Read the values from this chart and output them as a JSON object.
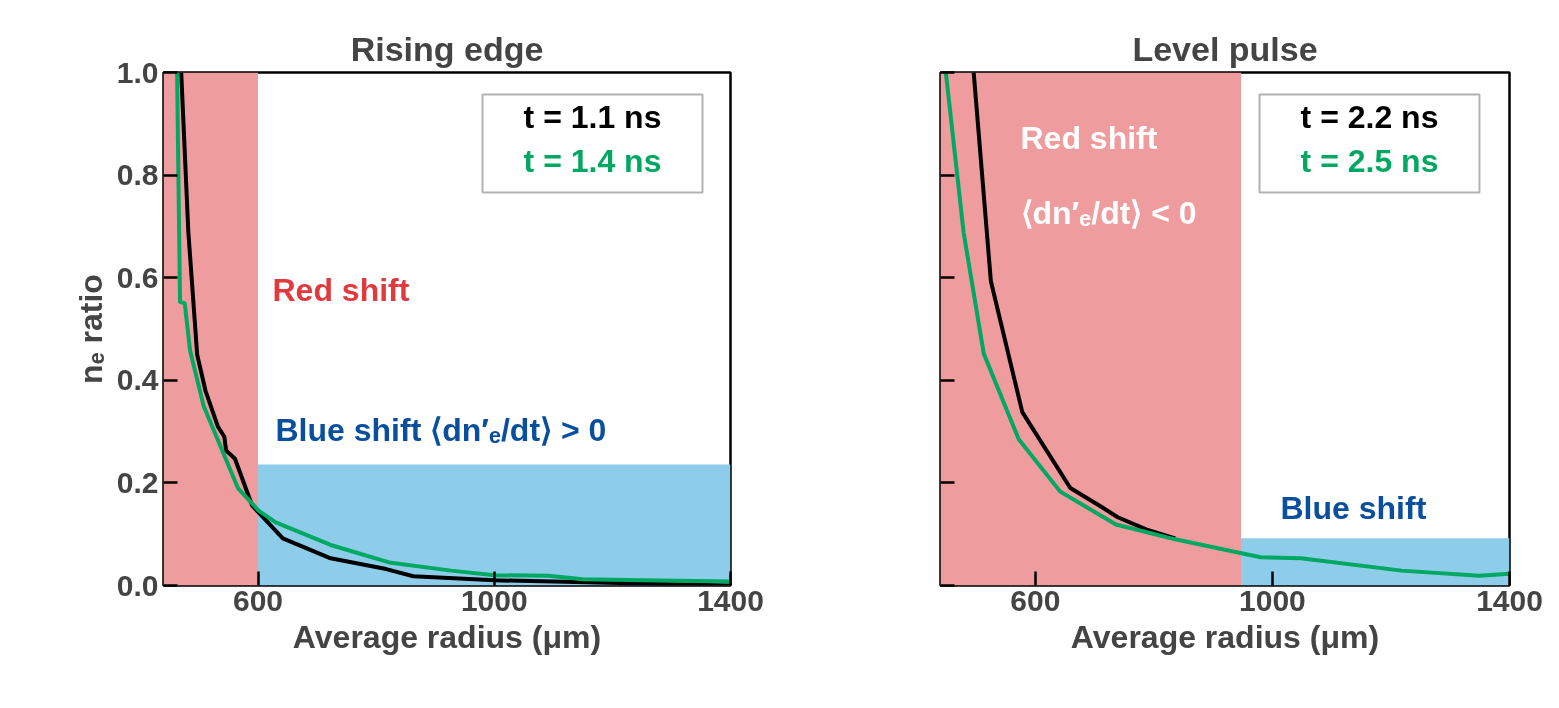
{
  "chart_data": [
    {
      "type": "line",
      "title": "Rising edge",
      "xlabel": "Average radius (μm)",
      "ylabel": "nₑ ratio",
      "xlim": [
        440,
        1400
      ],
      "ylim": [
        0,
        1.0
      ],
      "xticks": [
        600,
        1000,
        1400
      ],
      "yticks": [
        {
          "value": 0,
          "label": "0.0"
        },
        {
          "value": 0.2,
          "label": "0.2"
        },
        {
          "value": 0.4,
          "label": "0.4"
        },
        {
          "value": 0.6,
          "label": "0.6"
        },
        {
          "value": 0.8,
          "label": "0.8"
        },
        {
          "value": 1.0,
          "label": "1.0"
        }
      ],
      "grid": false,
      "legend": "top right",
      "bands": [
        {
          "axis": "x",
          "from": 440,
          "to": 600,
          "color": "#ee9c9e"
        }
      ],
      "annotations": [
        "Red shift",
        "Blue shift ⟨dn′ₑ/dt⟩ > 0"
      ],
      "series": [
        {
          "type": "area",
          "color": "#8ecde9",
          "x": [
            600,
            1400
          ],
          "values": [
            0.236,
            0.236
          ]
        },
        {
          "name": "t = 1.1 ns",
          "color": "#000000",
          "x": [
            470,
            482,
            497,
            511,
            532,
            543,
            546,
            561,
            590,
            642,
            723,
            817,
            863,
            1000,
            1100,
            1250,
            1400
          ],
          "values": [
            1.0,
            0.69,
            0.45,
            0.38,
            0.31,
            0.29,
            0.263,
            0.247,
            0.156,
            0.092,
            0.053,
            0.032,
            0.018,
            0.01,
            0.008,
            0.004,
            0.0
          ]
        },
        {
          "name": "t = 1.4 ns",
          "color": "#00a862",
          "x": [
            463,
            468,
            476,
            485,
            508,
            566,
            601,
            630,
            723,
            822,
            927,
            1000,
            1091,
            1150,
            1250,
            1400
          ],
          "values": [
            1.0,
            0.553,
            0.55,
            0.458,
            0.35,
            0.19,
            0.146,
            0.123,
            0.079,
            0.045,
            0.029,
            0.02,
            0.019,
            0.012,
            0.01,
            0.008
          ]
        }
      ]
    },
    {
      "type": "line",
      "title": "Level pulse",
      "xlabel": "Average radius (μm)",
      "xlim": [
        440,
        1400
      ],
      "ylim": [
        0,
        1.0
      ],
      "xticks": [
        600,
        1000,
        1400
      ],
      "yticks": [
        0,
        0.2,
        0.4,
        0.6,
        0.8,
        1.0
      ],
      "tick_labels": "x",
      "grid": false,
      "legend": "top right",
      "bands": [
        {
          "axis": "x",
          "from": 440,
          "to": 947,
          "color": "#ee9c9e"
        }
      ],
      "annotations": [
        "Red shift",
        "⟨dn′ₑ/dt⟩ < 0",
        "Blue shift"
      ],
      "series": [
        {
          "type": "area",
          "color": "#8ecde9",
          "x": [
            947,
            1400
          ],
          "values": [
            0.092,
            0.092
          ]
        },
        {
          "name": "t = 2.2 ns",
          "color": "#000000",
          "x": [
            496,
            525,
            578,
            659,
            712,
            739,
            788,
            836
          ],
          "values": [
            1.0,
            0.593,
            0.338,
            0.19,
            0.153,
            0.133,
            0.109,
            0.092
          ]
        },
        {
          "name": "t = 2.5 ns",
          "color": "#00a862",
          "x": [
            449,
            479,
            513,
            572,
            642,
            736,
            836,
            980,
            1048,
            1218,
            1349,
            1400
          ],
          "values": [
            1.0,
            0.688,
            0.452,
            0.285,
            0.183,
            0.119,
            0.09,
            0.055,
            0.053,
            0.029,
            0.019,
            0.023
          ]
        }
      ]
    }
  ]
}
